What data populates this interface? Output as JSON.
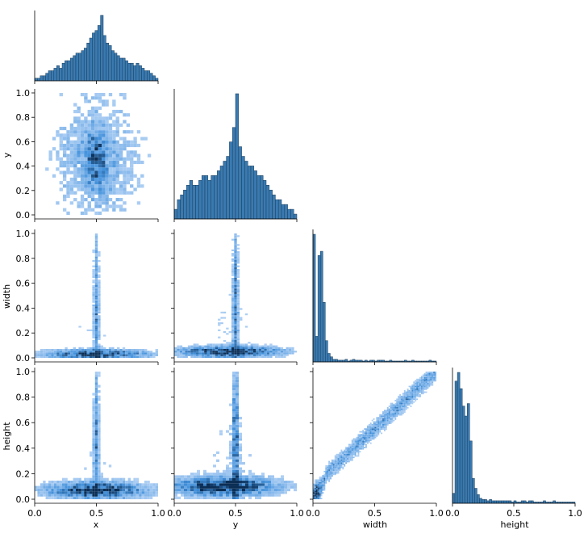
{
  "colors": {
    "hist_fill": "#3a7ab1",
    "hist_edge": "#1c3d58",
    "density_low": "#cfe2fb",
    "density_high": "#0b2e55"
  },
  "variables": [
    "x",
    "y",
    "width",
    "height"
  ],
  "chart_data": {
    "type": "pairplot",
    "kind": "hist",
    "corner": true,
    "variables": [
      "x",
      "y",
      "width",
      "height"
    ],
    "axis_ranges": {
      "x": [
        0,
        1
      ],
      "y": [
        0,
        1
      ],
      "width": [
        0,
        1
      ],
      "height": [
        0,
        1
      ]
    },
    "ticks": {
      "x": [
        "0.0",
        "0.5",
        "1.0"
      ],
      "y": [
        "0.0",
        "0.5",
        "1.0"
      ],
      "width": [
        "0.0",
        "0.5",
        "1.0"
      ],
      "height": [
        "0.0",
        "0.5",
        "1.0"
      ]
    },
    "row_ticks": {
      "y": [
        "0.0",
        "0.2",
        "0.4",
        "0.6",
        "0.8",
        "1.0"
      ],
      "width": [
        "0.0",
        "0.2",
        "0.4",
        "0.6",
        "0.8",
        "1.0"
      ],
      "height": [
        "0.0",
        "0.2",
        "0.4",
        "0.6",
        "0.8",
        "1.0"
      ]
    },
    "diagonal_histograms": {
      "x": {
        "bin_range": [
          0,
          1
        ],
        "counts": [
          1,
          1,
          2,
          2,
          3,
          4,
          4,
          5,
          6,
          5,
          7,
          8,
          8,
          9,
          10,
          11,
          11,
          12,
          13,
          15,
          17,
          19,
          20,
          22,
          26,
          18,
          15,
          14,
          12,
          11,
          10,
          9,
          9,
          8,
          7,
          7,
          6,
          7,
          6,
          5,
          4,
          4,
          3,
          2,
          1
        ]
      },
      "y": {
        "bin_range": [
          0,
          1
        ],
        "counts": [
          2,
          4,
          5,
          6,
          7,
          8,
          7,
          7,
          8,
          9,
          9,
          8,
          9,
          9,
          10,
          11,
          12,
          13,
          16,
          19,
          26,
          15,
          13,
          12,
          11,
          11,
          10,
          9,
          9,
          8,
          7,
          6,
          5,
          4,
          4,
          3,
          3,
          2,
          2,
          1
        ]
      },
      "width": {
        "bin_range": [
          0,
          1
        ],
        "counts": [
          150,
          30,
          125,
          130,
          70,
          25,
          10,
          6,
          3,
          3,
          2,
          2,
          2,
          3,
          1,
          2,
          3,
          2,
          2,
          2,
          1,
          2,
          1,
          2,
          2,
          1,
          2,
          2,
          2,
          1,
          1,
          2,
          1,
          1,
          1,
          1,
          1,
          2,
          1,
          1,
          2,
          1,
          1,
          1,
          1,
          1,
          1,
          2,
          1,
          1
        ]
      },
      "height": {
        "bin_range": [
          0,
          1
        ],
        "counts": [
          8,
          98,
          105,
          92,
          78,
          70,
          80,
          50,
          20,
          12,
          7,
          4,
          3,
          3,
          2,
          3,
          2,
          2,
          2,
          2,
          2,
          2,
          2,
          2,
          1,
          2,
          1,
          1,
          2,
          2,
          1,
          2,
          2,
          1,
          1,
          1,
          1,
          2,
          1,
          1,
          1,
          2,
          1,
          1,
          1,
          1,
          1,
          1,
          1,
          1
        ]
      }
    },
    "bivariate_panels": [
      {
        "row": "y",
        "col": "x",
        "description": "2D histogram, dense centre near x=0.5, y=0.45"
      },
      {
        "row": "width",
        "col": "x",
        "description": "2D histogram, dense band at width≈0.03, spike at x=0.5"
      },
      {
        "row": "width",
        "col": "y",
        "description": "2D histogram, dense band at width≈0.05, spike at y=0.5"
      },
      {
        "row": "height",
        "col": "x",
        "description": "2D histogram, dense band at height≈0.05–0.1, spike at x=0.5"
      },
      {
        "row": "height",
        "col": "y",
        "description": "2D histogram, dense band at height≈0.1, spike at y=0.5"
      },
      {
        "row": "height",
        "col": "width",
        "description": "2D histogram, positive diagonal trend"
      }
    ]
  }
}
